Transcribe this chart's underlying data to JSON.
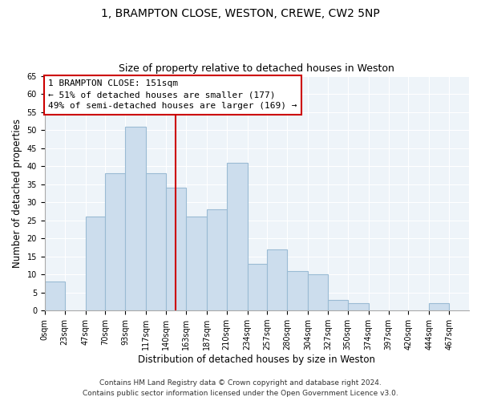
{
  "title": "1, BRAMPTON CLOSE, WESTON, CREWE, CW2 5NP",
  "subtitle": "Size of property relative to detached houses in Weston",
  "xlabel": "Distribution of detached houses by size in Weston",
  "ylabel": "Number of detached properties",
  "bar_values": [
    8,
    0,
    26,
    38,
    51,
    38,
    34,
    26,
    28,
    41,
    13,
    17,
    11,
    10,
    3,
    2,
    0,
    2
  ],
  "bar_left_edges": [
    0,
    23,
    47,
    70,
    93,
    117,
    140,
    163,
    187,
    210,
    234,
    257,
    280,
    304,
    327,
    350,
    374,
    444
  ],
  "bar_widths": [
    23,
    24,
    23,
    23,
    24,
    23,
    23,
    24,
    23,
    24,
    23,
    23,
    24,
    23,
    23,
    24,
    23,
    23
  ],
  "xtick_positions": [
    0,
    23,
    47,
    70,
    93,
    117,
    140,
    163,
    187,
    210,
    234,
    257,
    280,
    304,
    327,
    350,
    374,
    397,
    420,
    444,
    467
  ],
  "xtick_labels": [
    "0sqm",
    "23sqm",
    "47sqm",
    "70sqm",
    "93sqm",
    "117sqm",
    "140sqm",
    "163sqm",
    "187sqm",
    "210sqm",
    "234sqm",
    "257sqm",
    "280sqm",
    "304sqm",
    "327sqm",
    "350sqm",
    "374sqm",
    "397sqm",
    "420sqm",
    "444sqm",
    "467sqm"
  ],
  "ytick_positions": [
    0,
    5,
    10,
    15,
    20,
    25,
    30,
    35,
    40,
    45,
    50,
    55,
    60,
    65
  ],
  "ylim": [
    0,
    65
  ],
  "xlim": [
    0,
    490
  ],
  "bar_color": "#ccdded",
  "bar_edgecolor": "#9abbd4",
  "plot_bg_color": "#eef4f9",
  "red_line_x": 151,
  "annotation_title": "1 BRAMPTON CLOSE: 151sqm",
  "annotation_line1": "← 51% of detached houses are smaller (177)",
  "annotation_line2": "49% of semi-detached houses are larger (169) →",
  "annotation_box_color": "#ffffff",
  "annotation_box_edgecolor": "#cc0000",
  "footer_line1": "Contains HM Land Registry data © Crown copyright and database right 2024.",
  "footer_line2": "Contains public sector information licensed under the Open Government Licence v3.0.",
  "title_fontsize": 10,
  "subtitle_fontsize": 9,
  "axis_label_fontsize": 8.5,
  "tick_fontsize": 7,
  "annotation_fontsize": 8,
  "footer_fontsize": 6.5
}
